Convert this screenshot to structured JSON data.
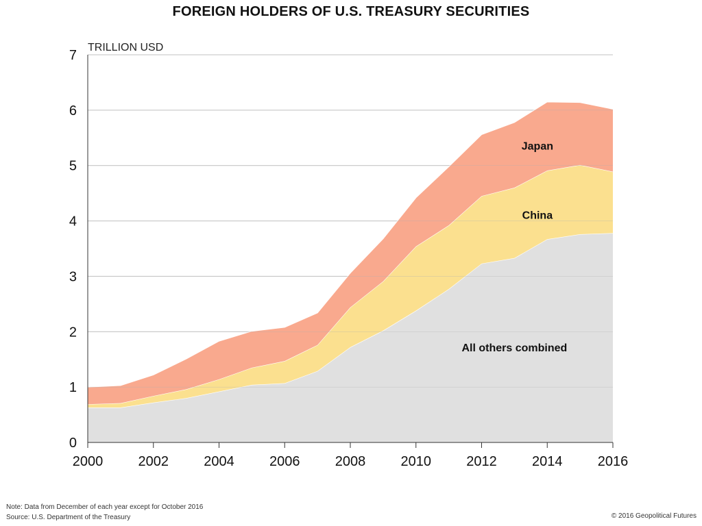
{
  "title": "FOREIGN HOLDERS OF U.S. TREASURY SECURITIES",
  "note": "Note: Data from December of each year except for October 2016",
  "source": "Source: U.S. Department of the Treasury",
  "credit": "© 2016 Geopolitical Futures",
  "chart_data": {
    "type": "area",
    "stacked": true,
    "title": "FOREIGN HOLDERS OF U.S. TREASURY SECURITIES",
    "xlabel": "",
    "ylabel": "TRILLION USD",
    "x": [
      2000,
      2001,
      2002,
      2003,
      2004,
      2005,
      2006,
      2007,
      2008,
      2009,
      2010,
      2011,
      2012,
      2013,
      2014,
      2015,
      2016
    ],
    "xlim": [
      2000,
      2016
    ],
    "ylim": [
      0,
      7
    ],
    "xticks": [
      "2000",
      "2002",
      "2004",
      "2006",
      "2008",
      "2010",
      "2012",
      "2014",
      "2016"
    ],
    "yticks": [
      "0",
      "1",
      "2",
      "3",
      "4",
      "5",
      "6",
      "7"
    ],
    "grid": true,
    "legend": "none",
    "series": [
      {
        "name": "All others combined",
        "color": "#e0e0e0",
        "values": [
          0.63,
          0.63,
          0.72,
          0.8,
          0.92,
          1.04,
          1.07,
          1.29,
          1.72,
          2.02,
          2.38,
          2.77,
          3.23,
          3.33,
          3.67,
          3.76,
          3.78
        ]
      },
      {
        "name": "China",
        "color": "#fbe08f",
        "values": [
          0.06,
          0.08,
          0.12,
          0.16,
          0.22,
          0.31,
          0.4,
          0.47,
          0.72,
          0.89,
          1.16,
          1.15,
          1.22,
          1.27,
          1.24,
          1.25,
          1.11
        ]
      },
      {
        "name": "Japan",
        "color": "#f9a98e",
        "values": [
          0.31,
          0.32,
          0.38,
          0.55,
          0.69,
          0.66,
          0.61,
          0.58,
          0.62,
          0.77,
          0.88,
          1.06,
          1.11,
          1.18,
          1.24,
          1.13,
          1.13
        ]
      }
    ],
    "annotations": [
      {
        "text": "Japan",
        "x": 2013.7,
        "y": 5.36
      },
      {
        "text": "China",
        "x": 2013.7,
        "y": 4.11
      },
      {
        "text": "All others combined",
        "x": 2013.0,
        "y": 1.72
      }
    ]
  }
}
